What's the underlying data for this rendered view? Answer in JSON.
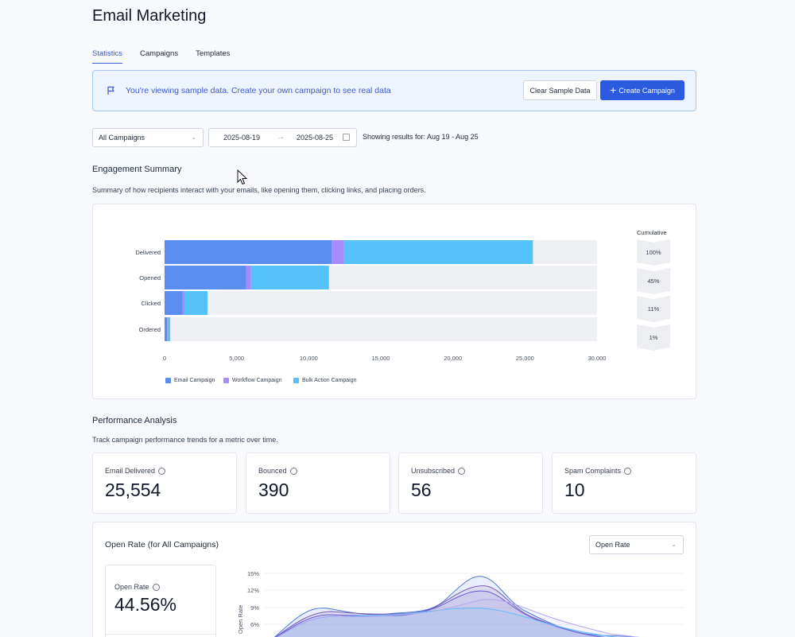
{
  "page_title": "Email Marketing",
  "tabs": [
    {
      "label": "Statistics",
      "active": true
    },
    {
      "label": "Campaigns",
      "active": false
    },
    {
      "label": "Templates",
      "active": false
    }
  ],
  "banner": {
    "icon": "flag-icon",
    "message": "You're viewing sample data. Create your own campaign to see real data",
    "clear_label": "Clear Sample Data",
    "create_label": "Create Campaign"
  },
  "filters": {
    "campaign_select": "All Campaigns",
    "date_from": "2025-08-19",
    "date_to": "2025-08-25",
    "showing": "Showing results for: Aug 19 - Aug 25"
  },
  "engagement": {
    "title": "Engagement Summary",
    "description": "Summary of how recipients interact with your emails, like opening them, clicking links, and placing orders.",
    "cumulative_title": "Cumulative",
    "cumulative": [
      "100%",
      "45%",
      "11%",
      "1%"
    ]
  },
  "chart_data": [
    {
      "type": "bar",
      "orientation": "horizontal",
      "stacked": true,
      "categories": [
        "Delivered",
        "Opened",
        "Clicked",
        "Ordered"
      ],
      "series": [
        {
          "name": "Email Campaign",
          "color": "#5b8def",
          "values": [
            11600,
            5650,
            1250,
            180
          ]
        },
        {
          "name": "Workflow Campaign",
          "color": "#a78bfa",
          "values": [
            850,
            350,
            130,
            30
          ]
        },
        {
          "name": "Bulk Action Campaign",
          "color": "#56c2fa",
          "values": [
            13100,
            5400,
            1600,
            180
          ]
        }
      ],
      "xlim": [
        0,
        30000
      ],
      "xticks": [
        "0",
        "5,000",
        "10,000",
        "15,000",
        "20,000",
        "25,000",
        "30,000"
      ],
      "legend_position": "bottom-left"
    },
    {
      "type": "area",
      "title": "Open Rate (for All Campaigns)",
      "ylabel": "Open Rate",
      "yticks": [
        "15%",
        "12%",
        "9%",
        "6%"
      ],
      "series_colors": [
        "#4f77d9",
        "#7c5ab8",
        "#6b5bd1",
        "#56c2fa",
        "#b3a6f2"
      ]
    }
  ],
  "performance": {
    "title": "Performance Analysis",
    "description": "Track campaign performance trends for a metric over time.",
    "stats": [
      {
        "label": "Email Delivered",
        "value": "25,554"
      },
      {
        "label": "Bounced",
        "value": "390"
      },
      {
        "label": "Unsubscribed",
        "value": "56"
      },
      {
        "label": "Spam Complaints",
        "value": "10"
      }
    ]
  },
  "open_rate": {
    "title": "Open Rate (for All Campaigns)",
    "metric_select": "Open Rate",
    "box_label": "Open Rate",
    "box_value": "44.56%"
  }
}
